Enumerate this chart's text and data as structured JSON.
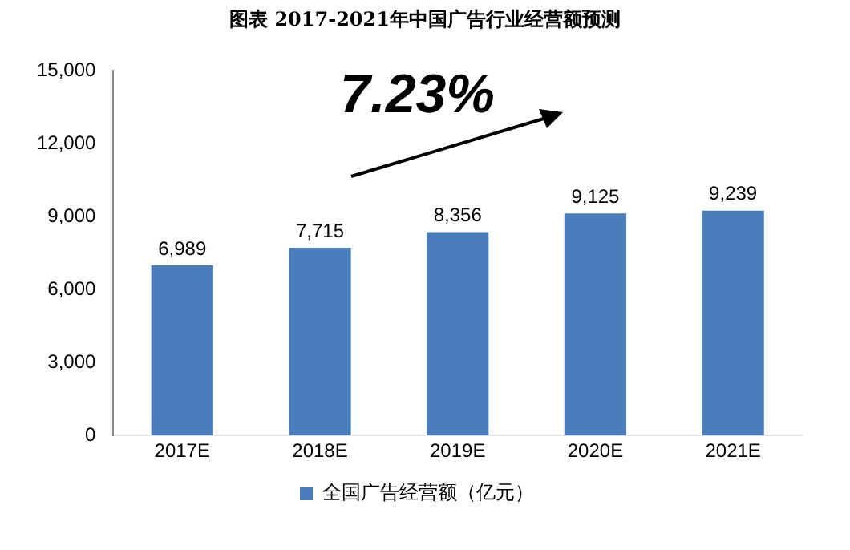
{
  "chart_data": {
    "type": "bar",
    "title": "图表 2017-2021年中国广告行业经营额预测",
    "categories": [
      "2017E",
      "2018E",
      "2019E",
      "2020E",
      "2021E"
    ],
    "series": [
      {
        "name": "全国广告经营额（亿元）",
        "color": "#4a7ebb",
        "values": [
          6989,
          7715,
          8356,
          9125,
          9239
        ],
        "value_labels": [
          "6,989",
          "7,715",
          "8,356",
          "9,125",
          "9,239"
        ]
      }
    ],
    "ylim": [
      0,
      15000
    ],
    "yticks": [
      {
        "value": 0,
        "label": "0"
      },
      {
        "value": 3000,
        "label": "3,000"
      },
      {
        "value": 6000,
        "label": "6,000"
      },
      {
        "value": 9000,
        "label": "9,000"
      },
      {
        "value": 12000,
        "label": "12,000"
      },
      {
        "value": 15000,
        "label": "15,000"
      }
    ],
    "legend": "bottom",
    "grid": false,
    "annotations": [
      "7.23%"
    ]
  }
}
